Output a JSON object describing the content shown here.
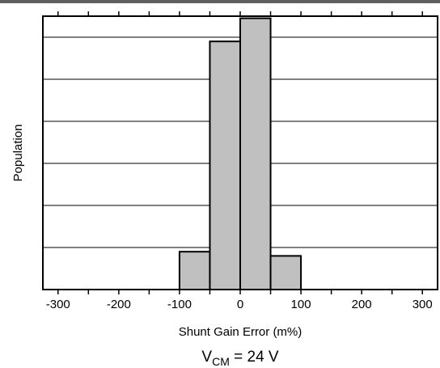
{
  "chart_data": {
    "type": "bar",
    "chart_subtype": "histogram",
    "title": "",
    "xlabel": "Shunt Gain Error (m%)",
    "ylabel": "Population",
    "condition": {
      "main": "V",
      "sub": "CM",
      "rest": " = 24 V"
    },
    "xlim": [
      -325,
      325
    ],
    "ylim": [
      0,
      6.5
    ],
    "x_ticks": [
      -300,
      -200,
      -100,
      0,
      100,
      200,
      300
    ],
    "x_tick_labels": [
      "-300",
      "-200",
      "-100",
      "0",
      "100",
      "200",
      "300"
    ],
    "y_gridlines": [
      1,
      2,
      3,
      4,
      5,
      6
    ],
    "y_tick_labels_shown": false,
    "bins": [
      {
        "x0": -100,
        "x1": -50,
        "value": 0.9
      },
      {
        "x0": -50,
        "x1": 0,
        "value": 5.9
      },
      {
        "x0": 0,
        "x1": 50,
        "value": 6.45
      },
      {
        "x0": 50,
        "x1": 100,
        "value": 0.8
      }
    ],
    "bar_color": "#c0c0c0",
    "grid": true,
    "legend": "none"
  },
  "colors": {
    "bar_fill": "#c0c0c0",
    "stroke": "#000000",
    "top_rule": "#5f5f5f"
  }
}
